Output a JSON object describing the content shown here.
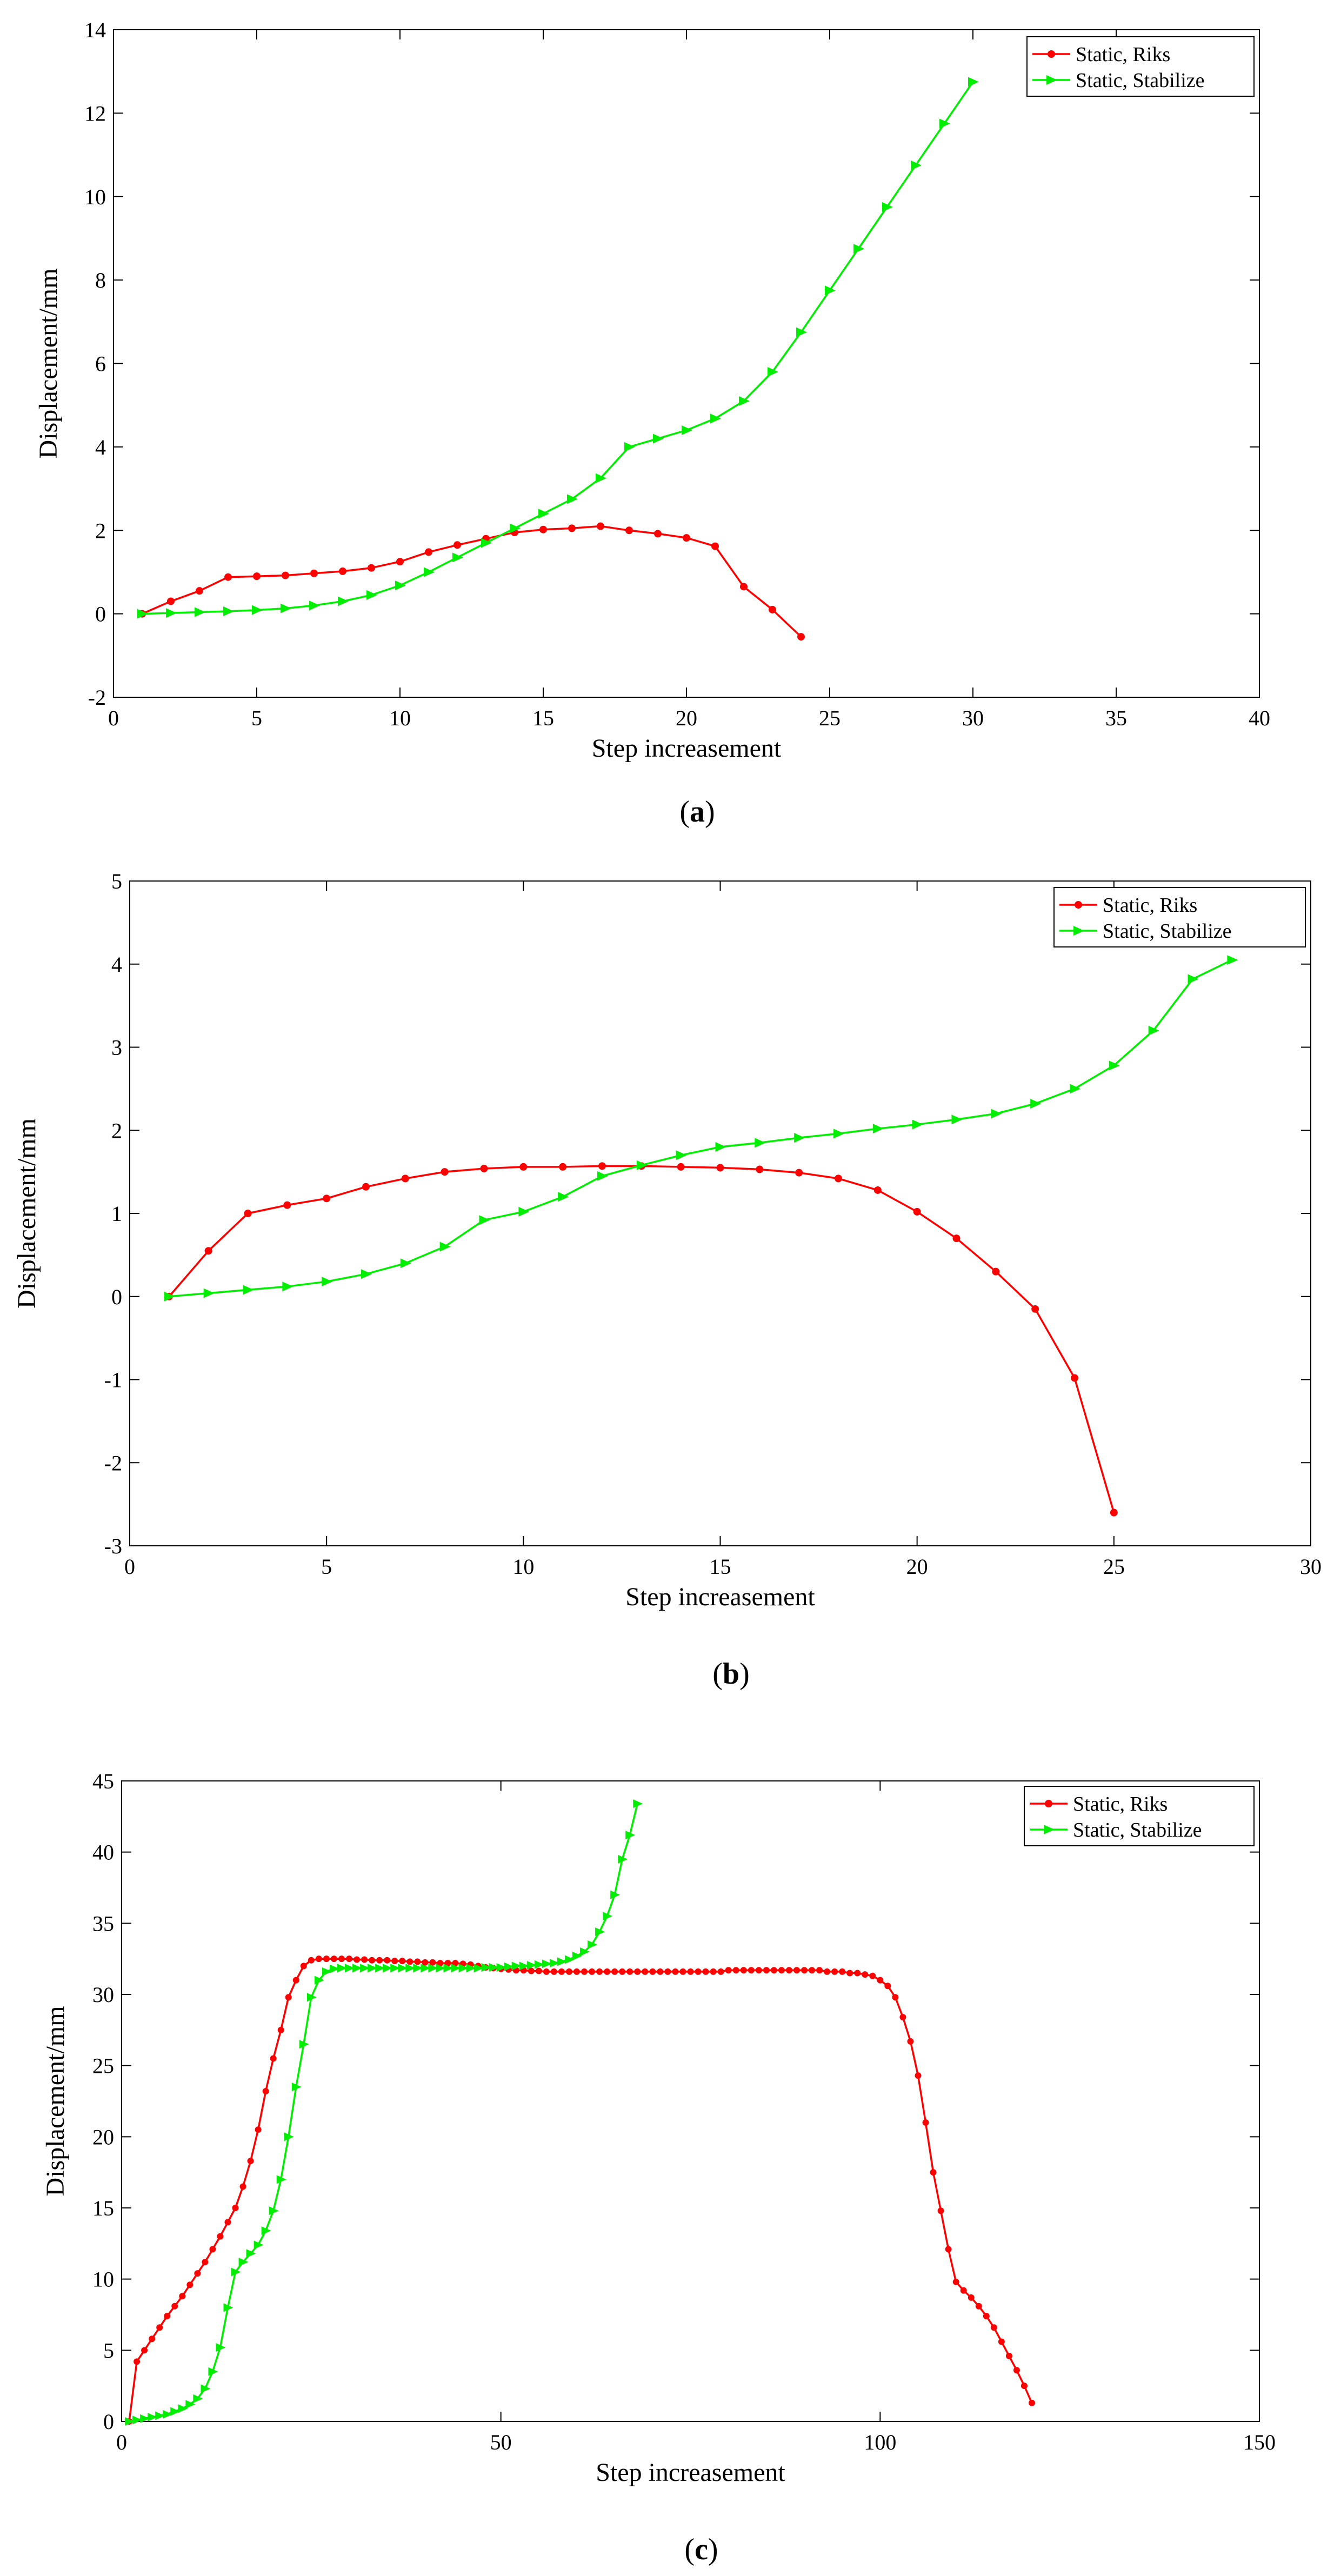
{
  "colors": {
    "riks": "#ff0000",
    "stabilize": "#00ee00",
    "axis": "#000000"
  },
  "chart_data": [
    {
      "type": "line",
      "caption": "(a)",
      "caption_letter": "a",
      "xlabel": "Step increasement",
      "ylabel": "Displacement/mm",
      "xlim": [
        0,
        40
      ],
      "ylim": [
        -2,
        14
      ],
      "xticks": [
        0,
        5,
        10,
        15,
        20,
        25,
        30,
        35,
        40
      ],
      "yticks": [
        -2,
        0,
        2,
        4,
        6,
        8,
        10,
        12,
        14
      ],
      "legend_position": "top-right",
      "series": [
        {
          "name": "Static, Riks",
          "color": "#ff0000",
          "marker": "circle",
          "x": [
            1,
            2,
            3,
            4,
            5,
            6,
            7,
            8,
            9,
            10,
            11,
            12,
            13,
            14,
            15,
            16,
            17,
            18,
            19,
            20,
            21,
            22,
            23,
            24
          ],
          "y": [
            0,
            0.3,
            0.55,
            0.88,
            0.9,
            0.92,
            0.97,
            1.02,
            1.1,
            1.25,
            1.48,
            1.65,
            1.8,
            1.95,
            2.02,
            2.05,
            2.1,
            2.0,
            1.92,
            1.82,
            1.62,
            0.65,
            0.1,
            -0.55
          ]
        },
        {
          "name": "Static, Stabilize",
          "color": "#00ee00",
          "marker": "triangle-right",
          "x": [
            1,
            2,
            3,
            4,
            5,
            6,
            7,
            8,
            9,
            10,
            11,
            12,
            13,
            14,
            15,
            16,
            17,
            18,
            19,
            20,
            21,
            22,
            23,
            24,
            25,
            26,
            27,
            28,
            29,
            30
          ],
          "y": [
            0,
            0.02,
            0.04,
            0.06,
            0.09,
            0.13,
            0.2,
            0.3,
            0.45,
            0.68,
            1.0,
            1.35,
            1.7,
            2.05,
            2.4,
            2.75,
            3.25,
            4.0,
            4.2,
            4.4,
            4.68,
            5.1,
            5.8,
            6.75,
            7.75,
            8.75,
            9.75,
            10.75,
            11.75,
            12.75
          ]
        }
      ]
    },
    {
      "type": "line",
      "caption": "(b)",
      "caption_letter": "b",
      "xlabel": "Step increasement",
      "ylabel": "Displacement/mm",
      "xlim": [
        0,
        30
      ],
      "ylim": [
        -3,
        5
      ],
      "xticks": [
        0,
        5,
        10,
        15,
        20,
        25,
        30
      ],
      "yticks": [
        -3,
        -2,
        -1,
        0,
        1,
        2,
        3,
        4,
        5
      ],
      "legend_position": "top-right",
      "series": [
        {
          "name": "Static, Riks",
          "color": "#ff0000",
          "marker": "circle",
          "x": [
            1,
            2,
            3,
            4,
            5,
            6,
            7,
            8,
            9,
            10,
            11,
            12,
            13,
            14,
            15,
            16,
            17,
            18,
            19,
            20,
            21,
            22,
            23,
            24,
            25
          ],
          "y": [
            0,
            0.55,
            1.0,
            1.1,
            1.18,
            1.32,
            1.42,
            1.5,
            1.54,
            1.56,
            1.56,
            1.57,
            1.57,
            1.56,
            1.55,
            1.53,
            1.49,
            1.42,
            1.28,
            1.02,
            0.7,
            0.3,
            -0.15,
            -0.98,
            -2.6
          ]
        },
        {
          "name": "Static, Stabilize",
          "color": "#00ee00",
          "marker": "triangle-right",
          "x": [
            1,
            2,
            3,
            4,
            5,
            6,
            7,
            8,
            9,
            10,
            11,
            12,
            13,
            14,
            15,
            16,
            17,
            18,
            19,
            20,
            21,
            22,
            23,
            24,
            25,
            26,
            27,
            28
          ],
          "y": [
            0,
            0.04,
            0.08,
            0.12,
            0.18,
            0.27,
            0.4,
            0.6,
            0.92,
            1.02,
            1.2,
            1.45,
            1.58,
            1.7,
            1.8,
            1.85,
            1.91,
            1.96,
            2.02,
            2.07,
            2.13,
            2.2,
            2.32,
            2.5,
            2.78,
            3.2,
            3.82,
            4.05
          ]
        }
      ]
    },
    {
      "type": "line",
      "caption": "(c)",
      "caption_letter": "c",
      "xlabel": "Step increasement",
      "ylabel": "Displacement/mm",
      "xlim": [
        0,
        150
      ],
      "ylim": [
        0,
        45
      ],
      "xticks": [
        0,
        50,
        100,
        150
      ],
      "yticks": [
        0,
        5,
        10,
        15,
        20,
        25,
        30,
        35,
        40,
        45
      ],
      "legend_position": "top-right",
      "series": [
        {
          "name": "Static, Riks",
          "color": "#ff0000",
          "marker": "circle",
          "x": [
            1,
            2,
            3,
            4,
            5,
            6,
            7,
            8,
            9,
            10,
            11,
            12,
            13,
            14,
            15,
            16,
            17,
            18,
            19,
            20,
            21,
            22,
            23,
            24,
            25,
            26,
            27,
            28,
            29,
            30,
            31,
            32,
            33,
            34,
            35,
            36,
            37,
            38,
            39,
            40,
            41,
            42,
            43,
            44,
            45,
            46,
            47,
            48,
            49,
            50,
            51,
            52,
            53,
            54,
            55,
            56,
            57,
            58,
            59,
            60,
            61,
            62,
            63,
            64,
            65,
            66,
            67,
            68,
            69,
            70,
            71,
            72,
            73,
            74,
            75,
            76,
            77,
            78,
            79,
            80,
            81,
            82,
            83,
            84,
            85,
            86,
            87,
            88,
            89,
            90,
            91,
            92,
            93,
            94,
            95,
            96,
            97,
            98,
            99,
            100,
            101,
            102,
            103,
            104,
            105,
            106,
            107,
            108,
            109,
            110,
            111,
            112,
            113,
            114,
            115,
            116,
            117,
            118,
            119,
            120
          ],
          "y": [
            0,
            4.2,
            5.0,
            5.8,
            6.6,
            7.4,
            8.1,
            8.8,
            9.6,
            10.4,
            11.2,
            12.1,
            13.0,
            14.0,
            15.0,
            16.5,
            18.3,
            20.5,
            23.2,
            25.5,
            27.5,
            29.8,
            31.0,
            32.0,
            32.4,
            32.5,
            32.5,
            32.5,
            32.5,
            32.5,
            32.45,
            32.45,
            32.4,
            32.4,
            32.4,
            32.35,
            32.35,
            32.3,
            32.3,
            32.25,
            32.25,
            32.2,
            32.2,
            32.2,
            32.15,
            32.1,
            32.0,
            31.9,
            31.85,
            31.8,
            31.75,
            31.7,
            31.7,
            31.65,
            31.65,
            31.6,
            31.6,
            31.6,
            31.6,
            31.6,
            31.6,
            31.6,
            31.6,
            31.6,
            31.6,
            31.6,
            31.6,
            31.6,
            31.6,
            31.6,
            31.6,
            31.6,
            31.6,
            31.6,
            31.6,
            31.6,
            31.6,
            31.6,
            31.6,
            31.7,
            31.7,
            31.7,
            31.7,
            31.7,
            31.7,
            31.7,
            31.7,
            31.7,
            31.7,
            31.7,
            31.7,
            31.7,
            31.6,
            31.6,
            31.6,
            31.5,
            31.5,
            31.4,
            31.3,
            31.0,
            30.6,
            29.8,
            28.4,
            26.7,
            24.3,
            21.0,
            17.5,
            14.8,
            12.1,
            9.8,
            9.2,
            8.7,
            8.1,
            7.4,
            6.6,
            5.6,
            4.6,
            3.6,
            2.5,
            1.3
          ]
        },
        {
          "name": "Static, Stabilize",
          "color": "#00ee00",
          "marker": "triangle-right",
          "x": [
            1,
            2,
            3,
            4,
            5,
            6,
            7,
            8,
            9,
            10,
            11,
            12,
            13,
            14,
            15,
            16,
            17,
            18,
            19,
            20,
            21,
            22,
            23,
            24,
            25,
            26,
            27,
            28,
            29,
            30,
            31,
            32,
            33,
            34,
            35,
            36,
            37,
            38,
            39,
            40,
            41,
            42,
            43,
            44,
            45,
            46,
            47,
            48,
            49,
            50,
            51,
            52,
            53,
            54,
            55,
            56,
            57,
            58,
            59,
            60,
            61,
            62,
            63,
            64,
            65,
            66,
            67,
            68
          ],
          "y": [
            0,
            0.1,
            0.2,
            0.3,
            0.4,
            0.5,
            0.7,
            0.9,
            1.2,
            1.6,
            2.3,
            3.5,
            5.2,
            8.0,
            10.5,
            11.2,
            11.8,
            12.4,
            13.4,
            14.8,
            17.0,
            20.0,
            23.5,
            26.5,
            29.8,
            31.0,
            31.6,
            31.8,
            31.85,
            31.85,
            31.85,
            31.85,
            31.85,
            31.85,
            31.85,
            31.85,
            31.85,
            31.85,
            31.85,
            31.85,
            31.85,
            31.85,
            31.85,
            31.85,
            31.85,
            31.85,
            31.85,
            31.9,
            31.9,
            31.9,
            31.95,
            32.0,
            32.0,
            32.05,
            32.1,
            32.15,
            32.2,
            32.3,
            32.45,
            32.7,
            33.0,
            33.5,
            34.4,
            35.5,
            37.0,
            39.5,
            41.2,
            43.4
          ]
        }
      ]
    }
  ]
}
